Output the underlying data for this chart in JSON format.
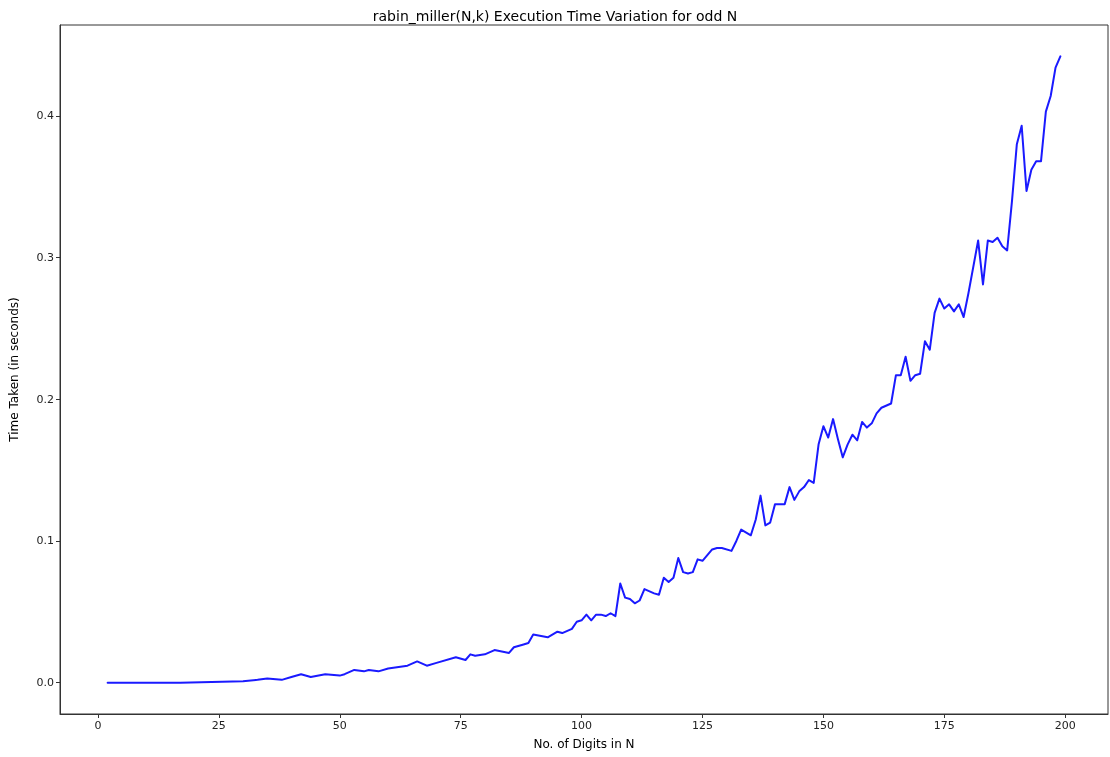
{
  "chart_data": {
    "type": "line",
    "title": "rabin_miller(N,k) Execution Time Variation for odd N",
    "xlabel": "No. of Digits in N",
    "ylabel": "Time Taken (in seconds)",
    "xlim": [
      -7.85,
      208.85
    ],
    "xticks": [
      0,
      25,
      50,
      75,
      100,
      125,
      150,
      175,
      200
    ],
    "ylim": [
      -0.0221,
      0.4641
    ],
    "yticks": [
      {
        "value": 0,
        "label": "0.0"
      },
      0.1,
      0.2,
      0.3,
      0.4
    ],
    "grid": false,
    "marker": "none",
    "line_style": "solid",
    "series": [
      {
        "color": "#1a1aff",
        "x": [
          2,
          17,
          30,
          33,
          35,
          38,
          40,
          42,
          44,
          47,
          50,
          51,
          53,
          55,
          56,
          58,
          60,
          64,
          66,
          68,
          70,
          74,
          76,
          77,
          78,
          80,
          82,
          85,
          86,
          88,
          89,
          90,
          93,
          95,
          96,
          98,
          99,
          100,
          101,
          102,
          103,
          104,
          105,
          106,
          107,
          108,
          109,
          110,
          111,
          112,
          113,
          115,
          116,
          117,
          118,
          119,
          120,
          121,
          122,
          123,
          124,
          125,
          126,
          127,
          128,
          129,
          131,
          132,
          133,
          135,
          136,
          137,
          138,
          139,
          140,
          142,
          143,
          144,
          145,
          146,
          147,
          148,
          149,
          150,
          151,
          152,
          153,
          154,
          155,
          156,
          157,
          158,
          159,
          160,
          161,
          162,
          164,
          165,
          166,
          167,
          168,
          169,
          170,
          171,
          172,
          173,
          174,
          175,
          176,
          177,
          178,
          179,
          180,
          182,
          183,
          184,
          185,
          186,
          187,
          188,
          189,
          190,
          191,
          192,
          193,
          194,
          195,
          196,
          197,
          198,
          199
        ],
        "values": [
          0,
          0,
          0.001,
          0.002,
          0.003,
          0.002,
          0.004,
          0.006,
          0.004,
          0.006,
          0.005,
          0.006,
          0.009,
          0.008,
          0.009,
          0.008,
          0.01,
          0.012,
          0.015,
          0.012,
          0.014,
          0.018,
          0.016,
          0.02,
          0.019,
          0.02,
          0.023,
          0.021,
          0.025,
          0.027,
          0.028,
          0.034,
          0.032,
          0.036,
          0.035,
          0.038,
          0.043,
          0.044,
          0.048,
          0.044,
          0.048,
          0.048,
          0.047,
          0.049,
          0.047,
          0.07,
          0.06,
          0.059,
          0.056,
          0.058,
          0.066,
          0.063,
          0.062,
          0.074,
          0.071,
          0.074,
          0.088,
          0.078,
          0.077,
          0.078,
          0.087,
          0.086,
          0.09,
          0.094,
          0.095,
          0.095,
          0.093,
          0.1,
          0.108,
          0.104,
          0.115,
          0.132,
          0.111,
          0.113,
          0.126,
          0.126,
          0.138,
          0.129,
          0.135,
          0.138,
          0.143,
          0.141,
          0.168,
          0.181,
          0.173,
          0.186,
          0.172,
          0.159,
          0.168,
          0.175,
          0.171,
          0.184,
          0.18,
          0.183,
          0.19,
          0.194,
          0.197,
          0.217,
          0.217,
          0.23,
          0.213,
          0.217,
          0.218,
          0.241,
          0.235,
          0.261,
          0.271,
          0.264,
          0.267,
          0.262,
          0.267,
          0.258,
          0.275,
          0.312,
          0.281,
          0.312,
          0.311,
          0.314,
          0.308,
          0.305,
          0.34,
          0.38,
          0.393,
          0.347,
          0.362,
          0.368,
          0.368,
          0.403,
          0.414,
          0.434,
          0.442
        ]
      }
    ]
  }
}
